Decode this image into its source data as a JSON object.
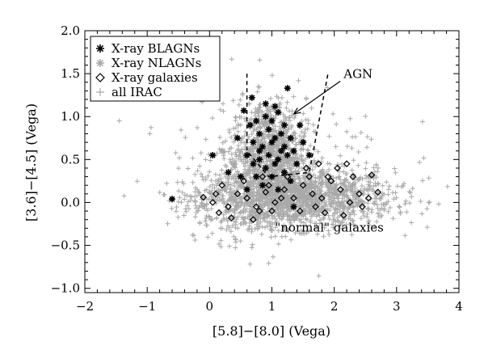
{
  "chart_data": {
    "type": "scatter",
    "title": "",
    "xlabel": "[5.8]−[8.0] (Vega)",
    "ylabel": "[3.6]−[4.5] (Vega)",
    "xlim": [
      -2,
      4
    ],
    "ylim": [
      -1.05,
      2.0
    ],
    "x_ticks": [
      -2,
      -1,
      0,
      1,
      2,
      3,
      4
    ],
    "x_tick_labels": [
      "−2",
      "−1",
      "0",
      "1",
      "2",
      "3",
      "4"
    ],
    "y_ticks": [
      -1.0,
      -0.5,
      0.0,
      0.5,
      1.0,
      1.5,
      2.0
    ],
    "y_tick_labels": [
      "−1.0",
      "−0.5",
      "0.0",
      "0.5",
      "1.0",
      "1.5",
      "2.0"
    ],
    "grid": false,
    "legend_position": "top-left",
    "colors": {
      "gray": "#a9a9a9",
      "black": "#000000"
    },
    "series": [
      {
        "name": "X-ray BLAGNs",
        "marker": "asterisk",
        "color": "#000000",
        "points": [
          [
            -0.6,
            0.04
          ],
          [
            0.55,
            1.07
          ],
          [
            0.68,
            1.22
          ],
          [
            1.25,
            1.33
          ],
          [
            0.05,
            0.55
          ],
          [
            0.75,
            0.95
          ],
          [
            0.9,
            1.0
          ],
          [
            1.0,
            0.95
          ],
          [
            1.1,
            1.05
          ],
          [
            1.2,
            0.9
          ],
          [
            0.8,
            0.8
          ],
          [
            0.95,
            0.85
          ],
          [
            1.05,
            0.75
          ],
          [
            1.15,
            0.8
          ],
          [
            1.3,
            0.75
          ],
          [
            0.7,
            0.7
          ],
          [
            0.85,
            0.65
          ],
          [
            1.0,
            0.7
          ],
          [
            1.2,
            0.65
          ],
          [
            1.35,
            0.6
          ],
          [
            0.6,
            0.55
          ],
          [
            0.8,
            0.5
          ],
          [
            0.95,
            0.55
          ],
          [
            1.1,
            0.5
          ],
          [
            1.25,
            0.55
          ],
          [
            0.7,
            0.45
          ],
          [
            0.9,
            0.4
          ],
          [
            1.05,
            0.45
          ],
          [
            1.2,
            0.35
          ],
          [
            1.4,
            0.45
          ],
          [
            0.5,
            0.3
          ],
          [
            0.75,
            0.3
          ],
          [
            1.0,
            0.3
          ],
          [
            1.3,
            0.25
          ],
          [
            0.6,
            0.15
          ],
          [
            0.85,
            0.2
          ],
          [
            1.1,
            0.15
          ],
          [
            1.45,
            0.9
          ],
          [
            1.5,
            0.7
          ],
          [
            0.65,
            0.9
          ],
          [
            0.9,
            1.15
          ],
          [
            1.05,
            1.12
          ],
          [
            0.8,
            0.6
          ],
          [
            1.15,
            0.6
          ],
          [
            1.35,
            -0.05
          ],
          [
            0.3,
            0.35
          ],
          [
            1.6,
            0.55
          ],
          [
            0.45,
            0.75
          ]
        ]
      },
      {
        "name": "X-ray NLAGNs",
        "marker": "asterisk",
        "color": "#a9a9a9",
        "points": [
          [
            0.4,
            0.45
          ],
          [
            0.7,
            0.55
          ],
          [
            1.0,
            0.6
          ],
          [
            1.3,
            0.5
          ],
          [
            0.5,
            0.2
          ],
          [
            0.9,
            0.1
          ],
          [
            1.2,
            0.05
          ],
          [
            1.6,
            0.2
          ],
          [
            0.2,
            0.6
          ],
          [
            1.8,
            0.35
          ],
          [
            0.6,
            0.0
          ],
          [
            1.4,
            0.15
          ],
          [
            2.0,
            0.1
          ],
          [
            0.35,
            0.05
          ],
          [
            1.1,
            -0.05
          ]
        ]
      },
      {
        "name": "X-ray galaxies",
        "marker": "diamond",
        "color": "#000000",
        "points": [
          [
            -0.1,
            0.06
          ],
          [
            0.05,
            0.0
          ],
          [
            0.15,
            -0.12
          ],
          [
            0.3,
            -0.05
          ],
          [
            0.45,
            0.1
          ],
          [
            0.6,
            0.05
          ],
          [
            0.75,
            -0.05
          ],
          [
            0.9,
            0.12
          ],
          [
            1.05,
            0.0
          ],
          [
            1.2,
            0.15
          ],
          [
            1.35,
            0.05
          ],
          [
            1.5,
            0.2
          ],
          [
            1.65,
            0.1
          ],
          [
            1.8,
            0.05
          ],
          [
            1.95,
            0.25
          ],
          [
            2.1,
            0.15
          ],
          [
            2.25,
            0.0
          ],
          [
            2.4,
            0.1
          ],
          [
            2.55,
            0.05
          ],
          [
            2.7,
            0.12
          ],
          [
            0.2,
            0.2
          ],
          [
            0.55,
            0.25
          ],
          [
            0.85,
            0.3
          ],
          [
            1.25,
            0.3
          ],
          [
            1.55,
            0.4
          ],
          [
            1.75,
            0.45
          ],
          [
            2.05,
            0.4
          ],
          [
            2.3,
            0.3
          ],
          [
            1.0,
            -0.1
          ],
          [
            1.45,
            -0.1
          ],
          [
            1.85,
            -0.12
          ],
          [
            2.15,
            -0.15
          ],
          [
            2.45,
            -0.05
          ],
          [
            0.35,
            -0.18
          ],
          [
            0.7,
            -0.2
          ],
          [
            1.6,
            0.3
          ],
          [
            1.9,
            0.3
          ],
          [
            2.2,
            0.45
          ],
          [
            0.95,
            0.2
          ],
          [
            0.1,
            0.1
          ],
          [
            2.6,
            0.32
          ],
          [
            0.8,
            -0.1
          ],
          [
            1.15,
            0.05
          ],
          [
            1.7,
            -0.05
          ]
        ]
      },
      {
        "name": "all IRAC",
        "marker": "plus",
        "color": "#a9a9a9",
        "points": []
      }
    ],
    "annotations": [
      {
        "text": "AGN",
        "x": 2.15,
        "y": 1.45,
        "arrow_to": [
          1.35,
          1.03
        ]
      },
      {
        "text": "\"normal\" galaxies",
        "x": 1.05,
        "y": -0.34
      }
    ],
    "agn_selection_wedge": [
      [
        [
          0.6,
          1.5
        ],
        [
          0.6,
          0.6
        ],
        [
          0.95,
          0.3
        ],
        [
          1.6,
          0.35
        ],
        [
          1.9,
          1.5
        ]
      ]
    ]
  }
}
